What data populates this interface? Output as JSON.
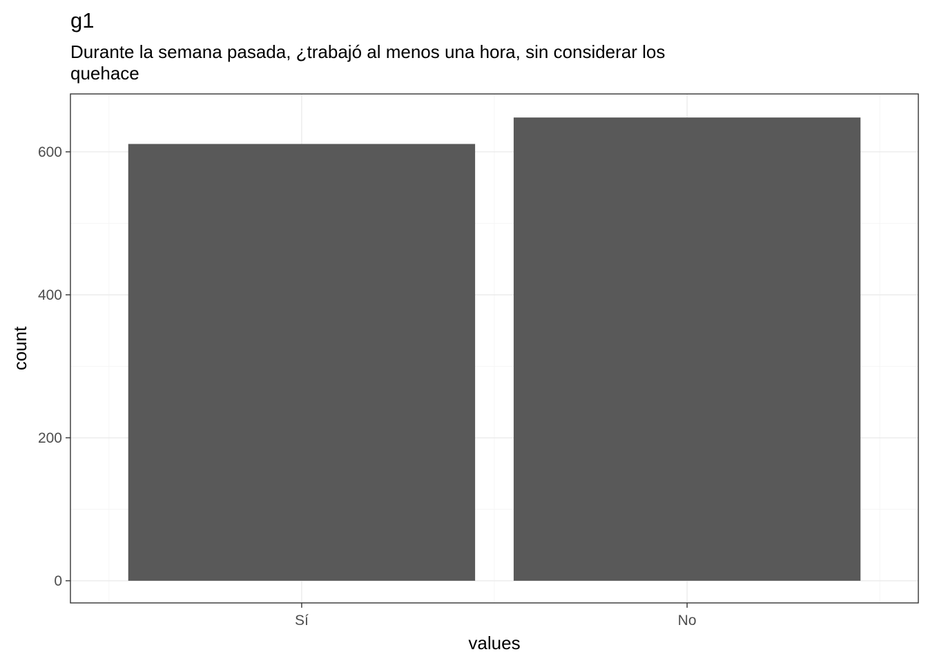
{
  "chart_data": {
    "type": "bar",
    "title": "g1",
    "subtitle": "Durante la semana pasada, ¿trabajó al menos una hora, sin considerar los quehace",
    "categories": [
      "Sí",
      "No"
    ],
    "values": [
      611,
      648
    ],
    "xlabel": "values",
    "ylabel": "count",
    "ylim": [
      -31,
      681
    ],
    "yticks": [
      0,
      200,
      400,
      600
    ],
    "grid": true,
    "bar_color": "#595959",
    "panel_border_color": "#333333",
    "grid_major_color": "#ebebeb",
    "grid_minor_color": "#f5f5f5"
  }
}
